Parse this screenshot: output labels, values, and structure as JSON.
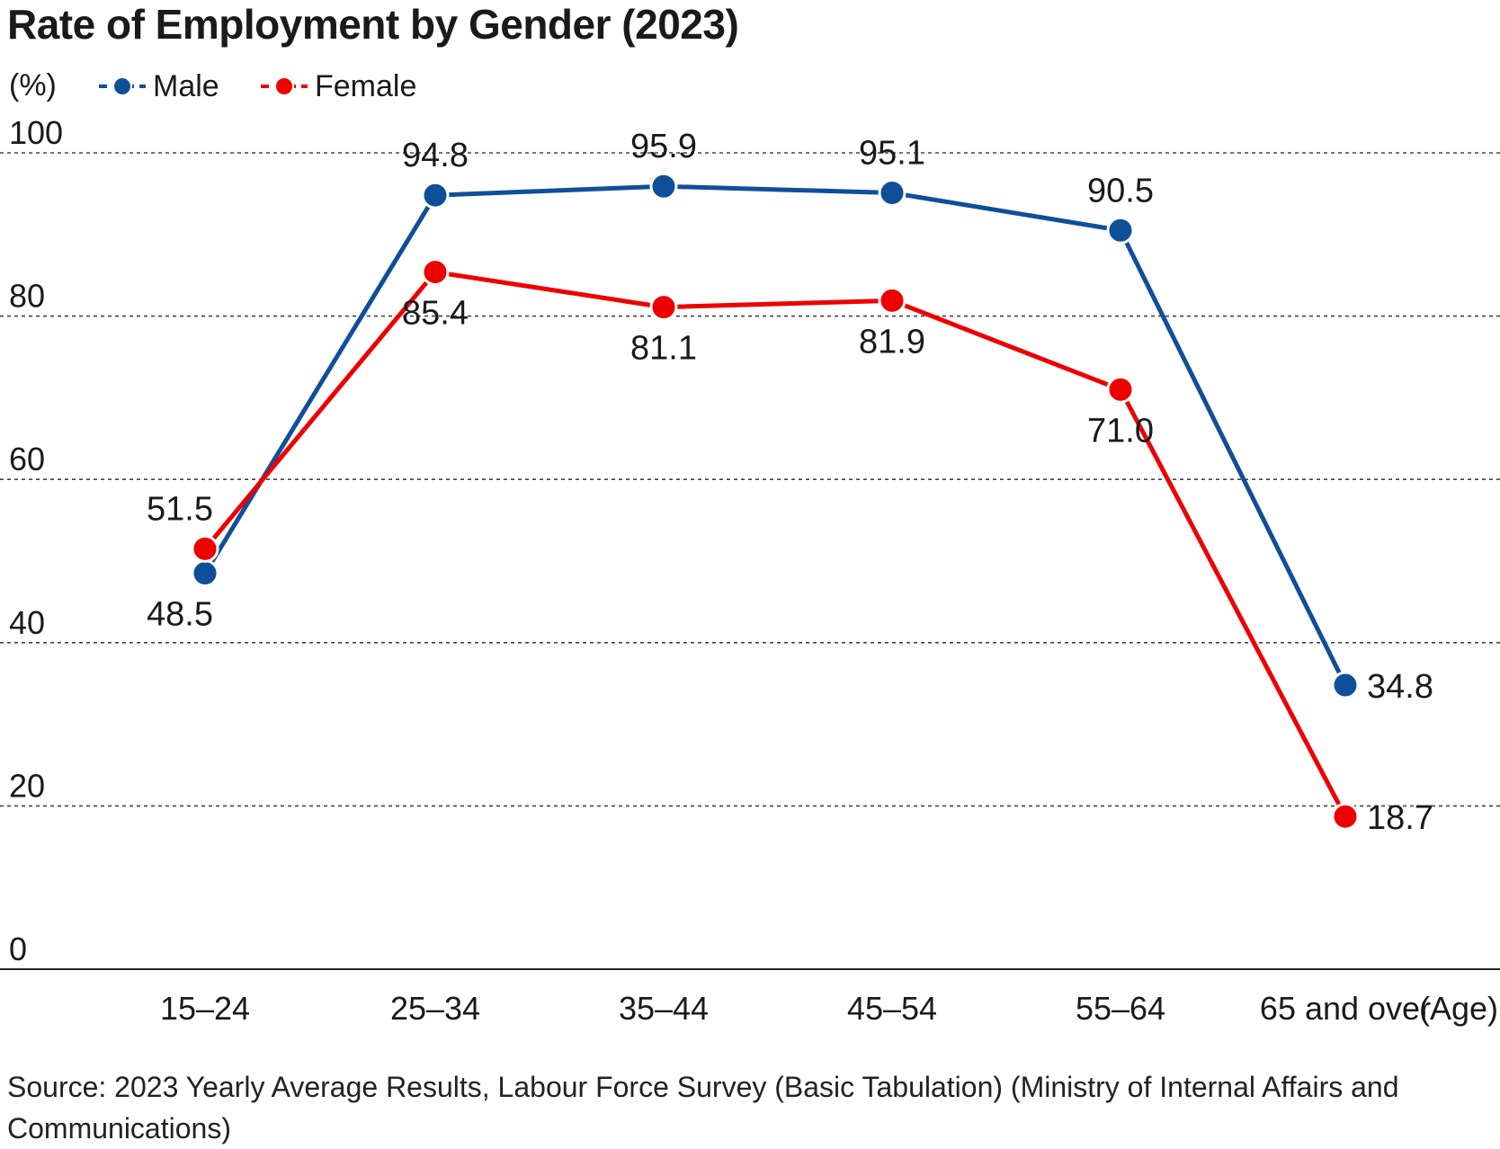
{
  "chart_data": {
    "type": "line",
    "title": "Rate of Employment by Gender (2023)",
    "ylabel": "(%)",
    "xlabel": "(Age)",
    "ylim": [
      0,
      100
    ],
    "yticks": [
      0,
      20,
      40,
      60,
      80,
      100
    ],
    "grid": true,
    "legend_position": "top-left",
    "categories": [
      "15–24",
      "25–34",
      "35–44",
      "45–54",
      "55–64",
      "65 and over"
    ],
    "series": [
      {
        "name": "Male",
        "color": "#0f4f9a",
        "values": [
          48.5,
          94.8,
          95.9,
          95.1,
          90.5,
          34.8
        ]
      },
      {
        "name": "Female",
        "color": "#ee0000",
        "values": [
          51.5,
          85.4,
          81.1,
          81.9,
          71.0,
          18.7
        ]
      }
    ],
    "source": "Source: 2023 Yearly Average Results, Labour Force Survey (Basic Tabulation) (Ministry of Internal Affairs and Communications)"
  }
}
